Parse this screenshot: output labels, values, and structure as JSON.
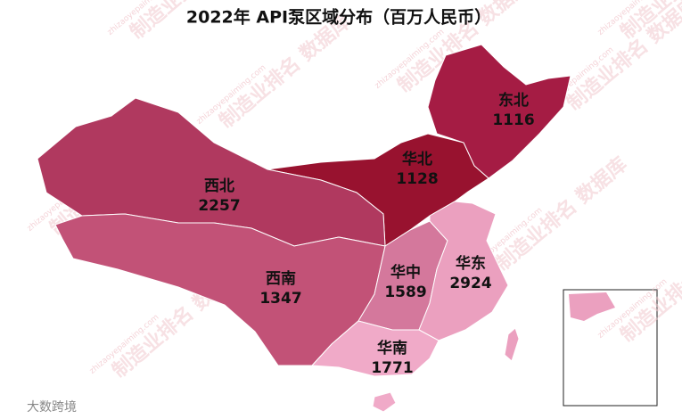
{
  "chart_data": {
    "type": "map",
    "title": "2022年 API泵区域分布（百万人民币）",
    "regions": [
      {
        "name": "东北",
        "value": 1116,
        "color": "#a51c44"
      },
      {
        "name": "华北",
        "value": 1128,
        "color": "#98122f"
      },
      {
        "name": "西北",
        "value": 2257,
        "color": "#b0395f"
      },
      {
        "name": "西南",
        "value": 1347,
        "color": "#c25277"
      },
      {
        "name": "华中",
        "value": 1589,
        "color": "#d4789c"
      },
      {
        "name": "华东",
        "value": 2924,
        "color": "#eba0bf"
      },
      {
        "name": "华南",
        "value": 1771,
        "color": "#f0aac8"
      }
    ],
    "watermark": "制造业排名 数据库",
    "watermark_url": "zhizaoyepaiming.com",
    "source": "大数跨境"
  }
}
